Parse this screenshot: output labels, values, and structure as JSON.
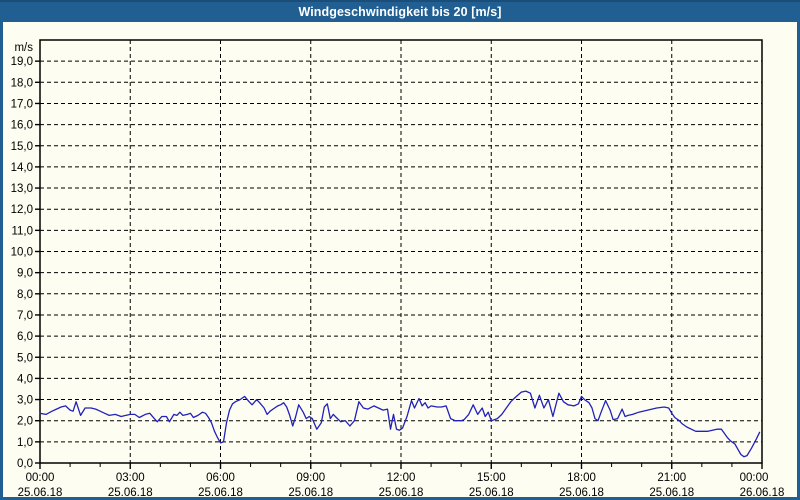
{
  "window": {
    "title": "Windgeschwindigkeit bis 20 [m/s]"
  },
  "colors": {
    "titlebar_bg": "#215f93",
    "titlebar_top_edge": "#1a4d77",
    "window_border": "#215f93",
    "chart_background": "#fdfdf2",
    "series_line": "#2222bb",
    "grid": "#000000",
    "axis_text": "#000000",
    "title_text": "#ffffff"
  },
  "chart_data": {
    "type": "line",
    "title": "Windgeschwindigkeit bis 20 [m/s]",
    "ylabel_unit": "m/s",
    "ylim": [
      0,
      20
    ],
    "xlim_hours": [
      0,
      24
    ],
    "grid": "dashed",
    "legend": "none",
    "markers": "none",
    "y_tick_labels": [
      "0,0",
      "1,0",
      "2,0",
      "3,0",
      "4,0",
      "5,0",
      "6,0",
      "7,0",
      "8,0",
      "9,0",
      "10,0",
      "11,0",
      "12,0",
      "13,0",
      "14,0",
      "15,0",
      "16,0",
      "17,0",
      "18,0",
      "19,0"
    ],
    "x_ticks": [
      {
        "hour": 0,
        "time": "00:00",
        "date": "25.06.18"
      },
      {
        "hour": 3,
        "time": "03:00",
        "date": "25.06.18"
      },
      {
        "hour": 6,
        "time": "06:00",
        "date": "25.06.18"
      },
      {
        "hour": 9,
        "time": "09:00",
        "date": "25.06.18"
      },
      {
        "hour": 12,
        "time": "12:00",
        "date": "25.06.18"
      },
      {
        "hour": 15,
        "time": "15:00",
        "date": "25.06.18"
      },
      {
        "hour": 18,
        "time": "18:00",
        "date": "25.06.18"
      },
      {
        "hour": 21,
        "time": "21:00",
        "date": "25.06.18"
      },
      {
        "hour": 24,
        "time": "00:00",
        "date": "26.06.18"
      }
    ],
    "minor_x_tick_every_hours": 1,
    "series": [
      {
        "name": "Windgeschwindigkeit",
        "color": "#2222bb",
        "points": [
          [
            0,
            2.35
          ],
          [
            0.2,
            2.3
          ],
          [
            0.4,
            2.45
          ],
          [
            0.55,
            2.55
          ],
          [
            0.7,
            2.65
          ],
          [
            0.85,
            2.7
          ],
          [
            1.0,
            2.5
          ],
          [
            1.1,
            2.45
          ],
          [
            1.2,
            2.9
          ],
          [
            1.35,
            2.25
          ],
          [
            1.5,
            2.6
          ],
          [
            1.7,
            2.6
          ],
          [
            1.85,
            2.55
          ],
          [
            2.0,
            2.45
          ],
          [
            2.15,
            2.35
          ],
          [
            2.3,
            2.25
          ],
          [
            2.5,
            2.3
          ],
          [
            2.7,
            2.2
          ],
          [
            2.85,
            2.25
          ],
          [
            3.0,
            2.3
          ],
          [
            3.15,
            2.3
          ],
          [
            3.3,
            2.15
          ],
          [
            3.5,
            2.3
          ],
          [
            3.65,
            2.35
          ],
          [
            3.8,
            2.1
          ],
          [
            3.9,
            1.95
          ],
          [
            4.05,
            2.2
          ],
          [
            4.2,
            2.2
          ],
          [
            4.3,
            1.95
          ],
          [
            4.45,
            2.3
          ],
          [
            4.55,
            2.25
          ],
          [
            4.65,
            2.4
          ],
          [
            4.75,
            2.25
          ],
          [
            4.9,
            2.3
          ],
          [
            5.0,
            2.35
          ],
          [
            5.1,
            2.15
          ],
          [
            5.25,
            2.25
          ],
          [
            5.4,
            2.4
          ],
          [
            5.5,
            2.35
          ],
          [
            5.6,
            2.15
          ],
          [
            5.7,
            1.9
          ],
          [
            5.8,
            1.5
          ],
          [
            5.9,
            1.2
          ],
          [
            6.0,
            0.95
          ],
          [
            6.1,
            1.0
          ],
          [
            6.2,
            1.9
          ],
          [
            6.3,
            2.5
          ],
          [
            6.4,
            2.8
          ],
          [
            6.5,
            2.9
          ],
          [
            6.65,
            3.0
          ],
          [
            6.8,
            3.15
          ],
          [
            6.95,
            2.9
          ],
          [
            7.05,
            2.75
          ],
          [
            7.2,
            3.0
          ],
          [
            7.3,
            2.85
          ],
          [
            7.45,
            2.6
          ],
          [
            7.55,
            2.3
          ],
          [
            7.65,
            2.45
          ],
          [
            7.8,
            2.6
          ],
          [
            7.9,
            2.7
          ],
          [
            8.0,
            2.75
          ],
          [
            8.1,
            2.85
          ],
          [
            8.2,
            2.65
          ],
          [
            8.3,
            2.25
          ],
          [
            8.4,
            1.75
          ],
          [
            8.5,
            2.2
          ],
          [
            8.6,
            2.75
          ],
          [
            8.75,
            2.4
          ],
          [
            8.85,
            2.1
          ],
          [
            8.95,
            2.2
          ],
          [
            9.05,
            2.1
          ],
          [
            9.2,
            1.6
          ],
          [
            9.35,
            1.9
          ],
          [
            9.45,
            2.65
          ],
          [
            9.55,
            2.8
          ],
          [
            9.65,
            2.1
          ],
          [
            9.75,
            2.3
          ],
          [
            9.85,
            2.15
          ],
          [
            10.0,
            1.95
          ],
          [
            10.15,
            2.0
          ],
          [
            10.3,
            1.75
          ],
          [
            10.45,
            2.0
          ],
          [
            10.6,
            2.9
          ],
          [
            10.75,
            2.6
          ],
          [
            10.9,
            2.55
          ],
          [
            11.1,
            2.7
          ],
          [
            11.25,
            2.6
          ],
          [
            11.4,
            2.5
          ],
          [
            11.55,
            2.55
          ],
          [
            11.65,
            1.6
          ],
          [
            11.75,
            2.3
          ],
          [
            11.85,
            1.6
          ],
          [
            11.95,
            1.55
          ],
          [
            12.05,
            1.65
          ],
          [
            12.2,
            2.2
          ],
          [
            12.35,
            2.95
          ],
          [
            12.45,
            2.6
          ],
          [
            12.6,
            3.05
          ],
          [
            12.7,
            2.7
          ],
          [
            12.8,
            2.85
          ],
          [
            12.9,
            2.6
          ],
          [
            13.0,
            2.7
          ],
          [
            13.2,
            2.65
          ],
          [
            13.35,
            2.65
          ],
          [
            13.5,
            2.7
          ],
          [
            13.65,
            2.1
          ],
          [
            13.8,
            2.0
          ],
          [
            14.0,
            2.0
          ],
          [
            14.1,
            2.05
          ],
          [
            14.25,
            2.3
          ],
          [
            14.4,
            2.75
          ],
          [
            14.55,
            2.3
          ],
          [
            14.7,
            2.6
          ],
          [
            14.8,
            2.2
          ],
          [
            14.9,
            2.4
          ],
          [
            15.0,
            2.0
          ],
          [
            15.2,
            2.1
          ],
          [
            15.35,
            2.3
          ],
          [
            15.5,
            2.6
          ],
          [
            15.65,
            2.9
          ],
          [
            15.8,
            3.1
          ],
          [
            16.0,
            3.35
          ],
          [
            16.15,
            3.4
          ],
          [
            16.3,
            3.3
          ],
          [
            16.45,
            2.6
          ],
          [
            16.6,
            3.2
          ],
          [
            16.75,
            2.6
          ],
          [
            16.9,
            3.0
          ],
          [
            17.05,
            2.2
          ],
          [
            17.25,
            3.3
          ],
          [
            17.4,
            2.9
          ],
          [
            17.55,
            2.75
          ],
          [
            17.75,
            2.7
          ],
          [
            17.9,
            2.8
          ],
          [
            18.0,
            3.15
          ],
          [
            18.1,
            3.0
          ],
          [
            18.25,
            2.85
          ],
          [
            18.35,
            2.6
          ],
          [
            18.45,
            2.1
          ],
          [
            18.55,
            2.0
          ],
          [
            18.65,
            2.4
          ],
          [
            18.8,
            2.95
          ],
          [
            18.95,
            2.5
          ],
          [
            19.05,
            2.05
          ],
          [
            19.2,
            2.1
          ],
          [
            19.35,
            2.55
          ],
          [
            19.45,
            2.2
          ],
          [
            19.55,
            2.25
          ],
          [
            19.7,
            2.3
          ],
          [
            19.9,
            2.4
          ],
          [
            20.2,
            2.5
          ],
          [
            20.5,
            2.6
          ],
          [
            20.75,
            2.65
          ],
          [
            20.9,
            2.6
          ],
          [
            21.0,
            2.35
          ],
          [
            21.1,
            2.15
          ],
          [
            21.25,
            2.0
          ],
          [
            21.35,
            1.85
          ],
          [
            21.5,
            1.7
          ],
          [
            21.65,
            1.6
          ],
          [
            21.8,
            1.5
          ],
          [
            22.0,
            1.5
          ],
          [
            22.2,
            1.5
          ],
          [
            22.35,
            1.55
          ],
          [
            22.5,
            1.6
          ],
          [
            22.65,
            1.6
          ],
          [
            22.75,
            1.4
          ],
          [
            22.85,
            1.2
          ],
          [
            22.95,
            1.05
          ],
          [
            23.1,
            0.9
          ],
          [
            23.2,
            0.65
          ],
          [
            23.3,
            0.4
          ],
          [
            23.4,
            0.3
          ],
          [
            23.5,
            0.35
          ],
          [
            23.65,
            0.7
          ],
          [
            23.8,
            1.1
          ],
          [
            23.92,
            1.45
          ]
        ]
      }
    ]
  }
}
